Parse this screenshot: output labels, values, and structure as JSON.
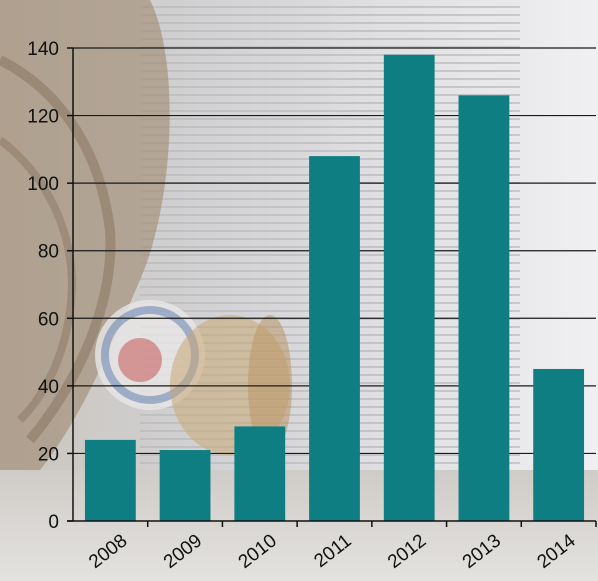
{
  "chart_data": {
    "type": "bar",
    "title": "",
    "xlabel": "",
    "ylabel": "",
    "categories": [
      "2008",
      "2009",
      "2010",
      "2011",
      "2012",
      "2013",
      "2014"
    ],
    "values": [
      24,
      21,
      28,
      108,
      138,
      126,
      45
    ],
    "ylim": [
      0,
      140
    ],
    "yticks": [
      0,
      20,
      40,
      60,
      80,
      100,
      120,
      140
    ],
    "grid": true,
    "legend": "none",
    "bar_color": "#0e7e82",
    "grid_color": "#1a1a1a",
    "axis_color": "#111111"
  }
}
